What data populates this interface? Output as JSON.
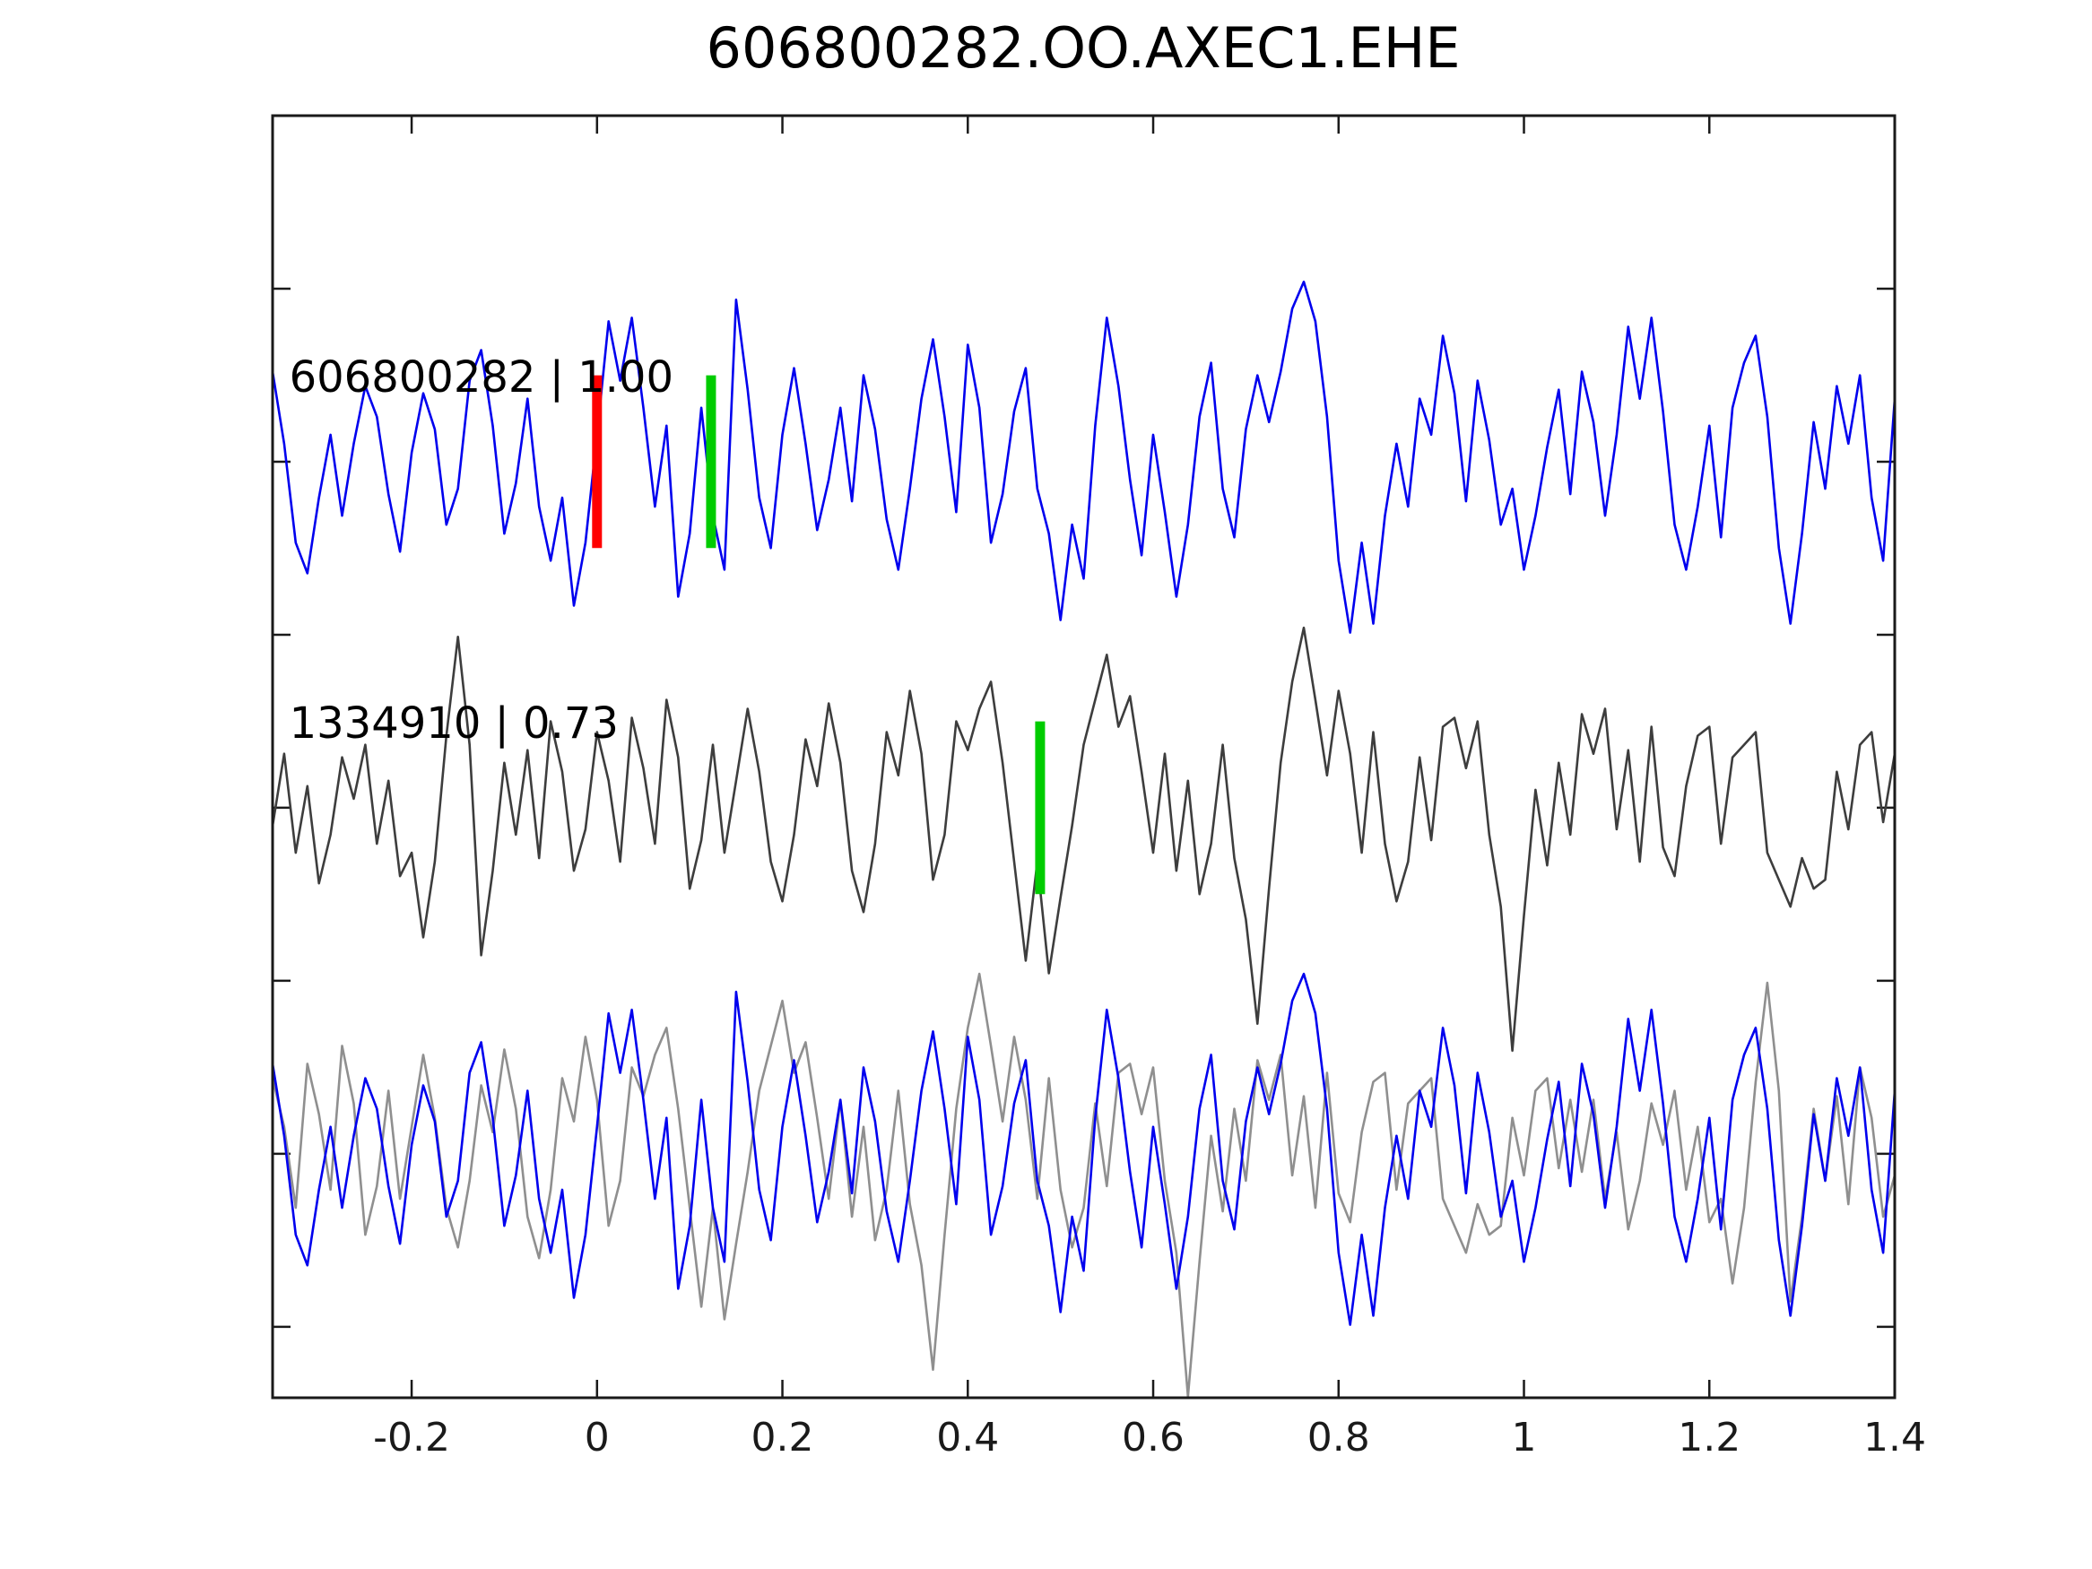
{
  "title": "606800282.OO.AXEC1.EHE",
  "colors": {
    "detection_blue": "#0000ee",
    "template_dark_gray": "#3d3d3d",
    "overlay_gray": "#8f8f8f",
    "pick_red": "#ff0000",
    "pick_green": "#00cc00",
    "axis": "#1a1a1a",
    "background": "#ffffff"
  },
  "chart_data": {
    "type": "line",
    "title": "606800282.OO.AXEC1.EHE",
    "xlabel": "",
    "ylabel": "",
    "grid": false,
    "legend": null,
    "xlim": [
      -0.35,
      1.4
    ],
    "ylim": [
      -0.705,
      3.0
    ],
    "xticks": {
      "values": [
        -0.2,
        0,
        0.2,
        0.4,
        0.6,
        0.8,
        1,
        1.2,
        1.4
      ],
      "labels": [
        "-0.2",
        "0",
        "0.2",
        "0.4",
        "0.6",
        "0.8",
        "1",
        "1.2",
        "1.4"
      ]
    },
    "yticks": {
      "values": [
        -0.5,
        0,
        0.5,
        1.0,
        1.5,
        2.0,
        2.5
      ],
      "labels": []
    },
    "x_start": -0.35,
    "dt": 0.0125,
    "n_samples": 141,
    "amplitude_gain": 0.52,
    "rows": [
      {
        "name": "detection",
        "offset": 2.0,
        "series": "detection",
        "color_key": "detection_blue",
        "label": "606800282 | 1.00"
      },
      {
        "name": "template",
        "offset": 1.0,
        "series": "template",
        "color_key": "template_dark_gray",
        "label": "1334910 | 0.73"
      },
      {
        "name": "overlay",
        "offset": 0.0,
        "series": null,
        "color_key": null,
        "label": ""
      }
    ],
    "overlay": {
      "blue_series": "detection",
      "gray_series": "template",
      "gray_shift": -0.355,
      "blue_color_key": "detection_blue",
      "gray_color_key": "overlay_gray"
    },
    "trace_labels": {
      "x": -0.332,
      "dy_offset_units": 0.202
    },
    "markers": [
      {
        "name": "pick-marker-red",
        "row": 0,
        "x": 0.0,
        "color_key": "pick_red",
        "half_height": 0.48
      },
      {
        "name": "pick-marker-green-detection",
        "row": 0,
        "x": 0.123,
        "color_key": "pick_green",
        "half_height": 0.48
      },
      {
        "name": "pick-marker-green-template",
        "row": 1,
        "x": 0.478,
        "color_key": "pick_green",
        "half_height": 0.48
      }
    ],
    "series": {
      "detection": [
        0.5,
        0.1,
        -0.45,
        -0.62,
        -0.2,
        0.15,
        -0.3,
        0.1,
        0.42,
        0.25,
        -0.18,
        -0.5,
        0.05,
        0.38,
        0.18,
        -0.35,
        -0.15,
        0.45,
        0.62,
        0.2,
        -0.4,
        -0.12,
        0.35,
        -0.25,
        -0.55,
        -0.2,
        -0.8,
        -0.45,
        0.15,
        0.78,
        0.45,
        0.8,
        0.3,
        -0.25,
        0.2,
        -0.75,
        -0.4,
        0.3,
        -0.3,
        -0.6,
        0.9,
        0.4,
        -0.2,
        -0.48,
        0.15,
        0.52,
        0.1,
        -0.38,
        -0.1,
        0.3,
        -0.22,
        0.48,
        0.18,
        -0.32,
        -0.6,
        -0.15,
        0.35,
        0.68,
        0.25,
        -0.28,
        0.65,
        0.3,
        -0.45,
        -0.18,
        0.28,
        0.52,
        -0.15,
        -0.4,
        -0.88,
        -0.35,
        -0.65,
        0.2,
        0.8,
        0.42,
        -0.1,
        -0.52,
        0.15,
        -0.28,
        -0.75,
        -0.35,
        0.25,
        0.55,
        -0.15,
        -0.42,
        0.18,
        0.48,
        0.22,
        0.5,
        0.85,
        1.0,
        0.78,
        0.25,
        -0.55,
        -0.95,
        -0.45,
        -0.9,
        -0.3,
        0.1,
        -0.25,
        0.35,
        0.15,
        0.7,
        0.38,
        -0.22,
        0.45,
        0.12,
        -0.35,
        -0.15,
        -0.6,
        -0.3,
        0.08,
        0.4,
        -0.18,
        0.5,
        0.22,
        -0.3,
        0.15,
        0.75,
        0.35,
        0.8,
        0.28,
        -0.35,
        -0.6,
        -0.25,
        0.2,
        -0.42,
        0.3,
        0.55,
        0.7,
        0.25,
        -0.48,
        -0.9,
        -0.4,
        0.22,
        -0.15,
        0.42,
        0.1,
        0.48,
        -0.2,
        -0.55,
        0.35
      ],
      "template": [
        -0.1,
        0.3,
        -0.25,
        0.12,
        -0.42,
        -0.15,
        0.28,
        0.05,
        0.35,
        -0.2,
        0.15,
        -0.38,
        -0.25,
        -0.72,
        -0.3,
        0.4,
        0.95,
        0.35,
        -0.82,
        -0.35,
        0.25,
        -0.15,
        0.32,
        -0.28,
        0.48,
        0.2,
        -0.35,
        -0.12,
        0.42,
        0.15,
        -0.3,
        0.5,
        0.22,
        -0.2,
        0.6,
        0.28,
        -0.45,
        -0.18,
        0.35,
        -0.25,
        0.15,
        0.55,
        0.2,
        -0.3,
        -0.52,
        -0.15,
        0.38,
        0.12,
        0.58,
        0.25,
        -0.35,
        -0.58,
        -0.2,
        0.42,
        0.18,
        0.65,
        0.3,
        -0.4,
        -0.15,
        0.48,
        0.32,
        0.55,
        0.7,
        0.25,
        -0.3,
        -0.85,
        -0.3,
        -0.92,
        -0.5,
        -0.1,
        0.35,
        0.6,
        0.85,
        0.45,
        0.62,
        0.2,
        -0.25,
        0.3,
        -0.35,
        0.15,
        -0.48,
        -0.2,
        0.35,
        -0.28,
        -0.62,
        -1.2,
        -0.45,
        0.25,
        0.7,
        1.0,
        0.6,
        0.18,
        0.65,
        0.3,
        -0.25,
        0.42,
        -0.2,
        -0.52,
        -0.3,
        0.28,
        -0.18,
        0.45,
        0.5,
        0.22,
        0.48,
        -0.15,
        -0.55,
        -1.35,
        -0.6,
        0.1,
        -0.32,
        0.25,
        -0.15,
        0.52,
        0.3,
        0.55,
        -0.12,
        0.32,
        -0.3,
        0.45,
        -0.22,
        -0.38,
        0.12,
        0.4,
        0.45,
        -0.2,
        0.28,
        0.35,
        0.42,
        -0.25,
        -0.4,
        -0.55,
        -0.28,
        -0.45,
        -0.4,
        0.2,
        -0.12,
        0.35,
        0.42,
        -0.08,
        0.3
      ]
    }
  }
}
